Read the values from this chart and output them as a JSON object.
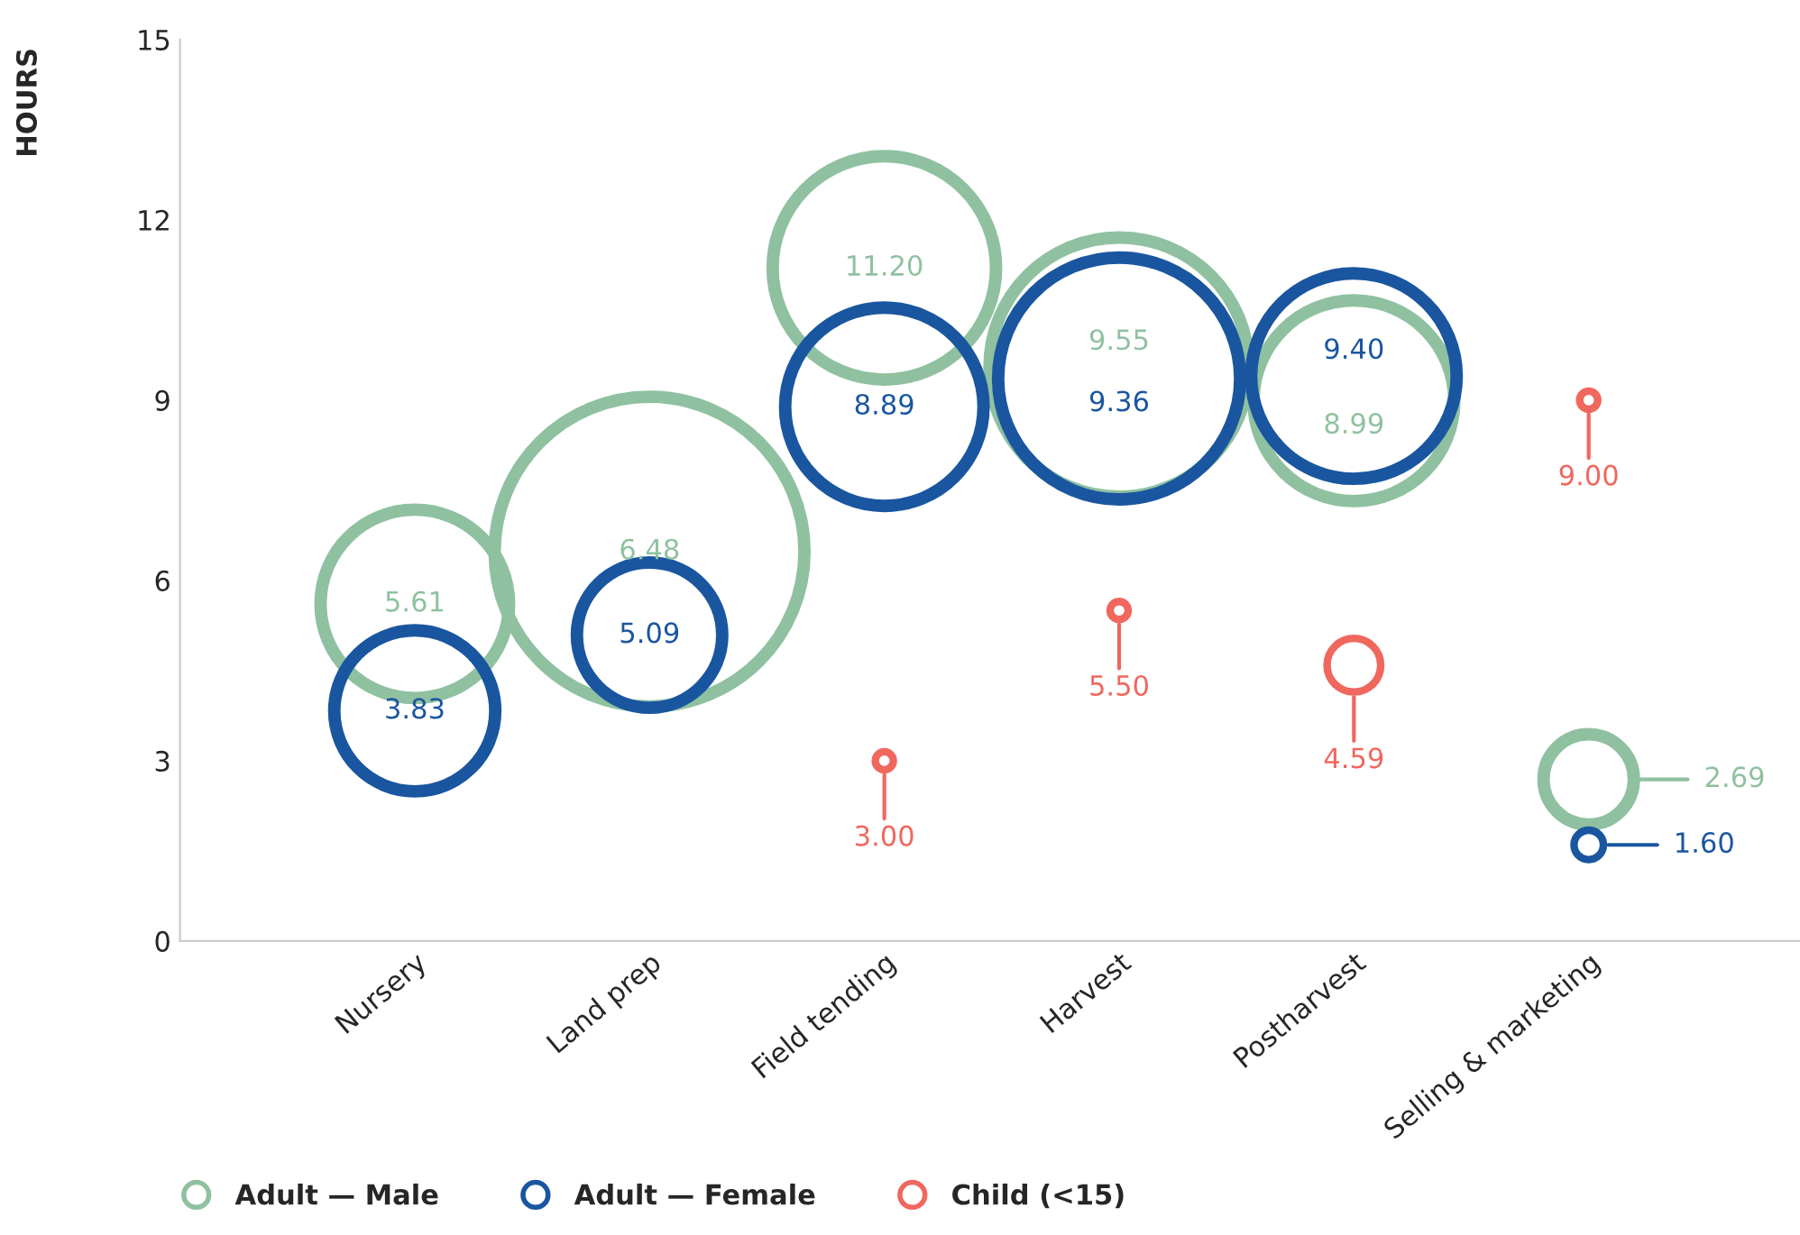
{
  "chart_data": {
    "type": "bubble",
    "ylabel": "HOURS",
    "categories": [
      "Nursery",
      "Land prep",
      "Field tending",
      "Harvest",
      "Postharvest",
      "Selling & marketing"
    ],
    "series": [
      {
        "name": "Adult — Male",
        "color": "#8fc1a0",
        "values": [
          5.61,
          6.48,
          11.2,
          9.55,
          8.99,
          2.69
        ],
        "sizes": [
          0.37,
          1.0,
          0.52,
          0.7,
          0.42,
          0.085
        ],
        "value_labels": [
          "5.61",
          "6.48",
          "11.20",
          "9.55",
          "8.99",
          "2.69"
        ]
      },
      {
        "name": "Adult — Female",
        "color": "#1a56a0",
        "values": [
          3.83,
          5.09,
          8.89,
          9.36,
          9.4,
          1.6
        ],
        "sizes": [
          0.27,
          0.22,
          0.41,
          0.61,
          0.44,
          0.009
        ],
        "value_labels": [
          "3.83",
          "5.09",
          "8.89",
          "9.36",
          "9.40",
          "1.60"
        ]
      },
      {
        "name": "Child (<15)",
        "color": "#f0675e",
        "values": [
          null,
          null,
          3.0,
          5.5,
          4.59,
          9.0
        ],
        "sizes": [
          null,
          null,
          0.0034,
          0.0034,
          0.03,
          0.0034
        ],
        "value_labels": [
          null,
          null,
          "3.00",
          "5.50",
          "4.59",
          "9.00"
        ]
      }
    ],
    "ylim": [
      0,
      15
    ],
    "yticks": [
      0,
      3,
      6,
      9,
      12,
      15
    ],
    "grid": false,
    "legend": "bottom left"
  }
}
